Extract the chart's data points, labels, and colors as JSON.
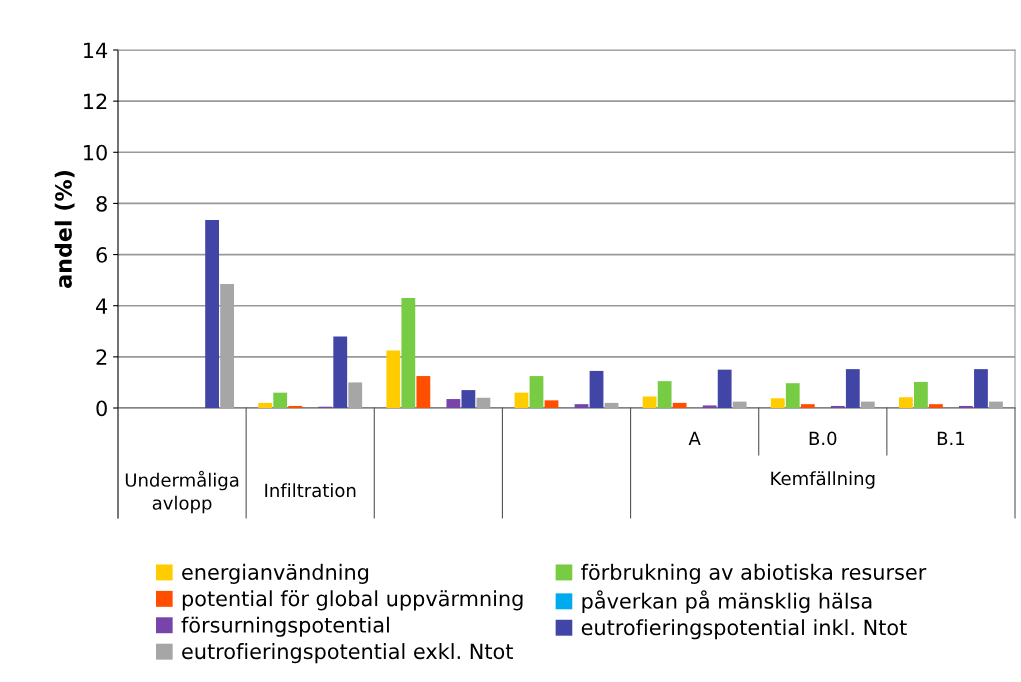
{
  "chart_data": {
    "type": "bar",
    "ylabel": "andel (%)",
    "categories": [
      "Undermåliga\navlopp",
      "Infiltration",
      null,
      null,
      "A",
      "B.0",
      "B.1"
    ],
    "annotations": [
      "Kemfällning"
    ],
    "series": [
      {
        "name": "energianvändning",
        "color": "#ffcc00",
        "values": [
          null,
          0.2,
          2.25,
          0.6,
          0.45,
          0.38,
          0.42
        ]
      },
      {
        "name": "förbrukning av abiotiska resurser",
        "color": "#77cc44",
        "values": [
          null,
          0.6,
          4.3,
          1.25,
          1.05,
          0.97,
          1.02
        ]
      },
      {
        "name": "potential för global uppvärmning",
        "color": "#ff4e00",
        "values": [
          null,
          0.08,
          1.25,
          0.3,
          0.2,
          0.15,
          0.15
        ]
      },
      {
        "name": "påverkan på mänsklig hälsa",
        "color": "#00aaee",
        "values": [
          null,
          null,
          null,
          null,
          null,
          null,
          null
        ]
      },
      {
        "name": "försurningspotential",
        "color": "#7744aa",
        "values": [
          null,
          0.05,
          0.35,
          0.15,
          0.1,
          0.08,
          0.08
        ]
      },
      {
        "name": "eutrofieringspotential inkl. Ntot",
        "color": "#4146a6",
        "values": [
          7.35,
          2.8,
          0.7,
          1.45,
          1.5,
          1.52,
          1.52
        ]
      },
      {
        "name": "eutrofieringspotential exkl. Ntot",
        "color": "#a6a6a6",
        "values": [
          4.85,
          1.0,
          0.4,
          0.2,
          0.25,
          0.25,
          0.25
        ]
      }
    ],
    "ylim": [
      0,
      14
    ],
    "yticks": [
      0,
      2,
      4,
      6,
      8,
      10,
      12,
      14
    ],
    "grid": "y",
    "legend": "bottom"
  }
}
